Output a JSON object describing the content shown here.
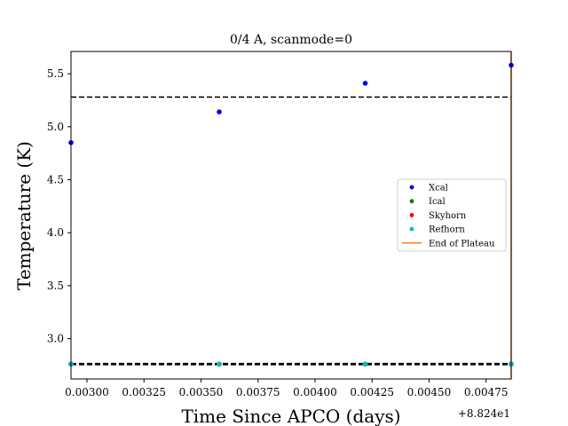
{
  "chart_data": {
    "type": "scatter",
    "title": "0/4 A, scanmode=0",
    "xlabel": "Time Since APCO (days)",
    "ylabel": "Temperature (K)",
    "x_offset_label": "+8.824e1",
    "xlim": [
      0.00293,
      0.00486
    ],
    "ylim": [
      2.62,
      5.71
    ],
    "xticks": [
      0.003,
      0.00325,
      0.0035,
      0.00375,
      0.004,
      0.00425,
      0.0045,
      0.00475
    ],
    "xtick_labels": [
      "0.00300",
      "0.00325",
      "0.00350",
      "0.00375",
      "0.00400",
      "0.00425",
      "0.00450",
      "0.00475"
    ],
    "yticks": [
      3.0,
      3.5,
      4.0,
      4.5,
      5.0,
      5.5
    ],
    "ytick_labels": [
      "3.0",
      "3.5",
      "4.0",
      "4.5",
      "5.0",
      "5.5"
    ],
    "grid": false,
    "legend_position": "center-right",
    "series": [
      {
        "name": "Xcal",
        "color": "#0000ff",
        "x": [
          0.00293,
          0.00358,
          0.00422,
          0.00486
        ],
        "y": [
          4.85,
          5.14,
          5.41,
          5.58
        ]
      },
      {
        "name": "Ical",
        "color": "#008000",
        "x": [
          0.00293,
          0.00358,
          0.00422,
          0.00486
        ],
        "y": [
          2.76,
          2.76,
          2.76,
          2.76
        ]
      },
      {
        "name": "Skyhorn",
        "color": "#ff0000",
        "x": [
          0.00293,
          0.00358,
          0.00422,
          0.00486
        ],
        "y": [
          2.76,
          2.76,
          2.76,
          2.76
        ]
      },
      {
        "name": "Refhorn",
        "color": "#00bfbf",
        "x": [
          0.00293,
          0.00358,
          0.00422,
          0.00486
        ],
        "y": [
          2.76,
          2.76,
          2.76,
          2.76
        ]
      }
    ],
    "end_of_plateau": {
      "name": "End of Plateau",
      "color": "#ff7f0e",
      "x": 0.00486
    },
    "reference_lines": [
      {
        "y": 5.28,
        "style": "dashed",
        "color": "#000000"
      },
      {
        "y": 2.765,
        "style": "dashed",
        "color": "#000000"
      },
      {
        "y": 2.755,
        "style": "dashed",
        "color": "#000000"
      }
    ]
  }
}
